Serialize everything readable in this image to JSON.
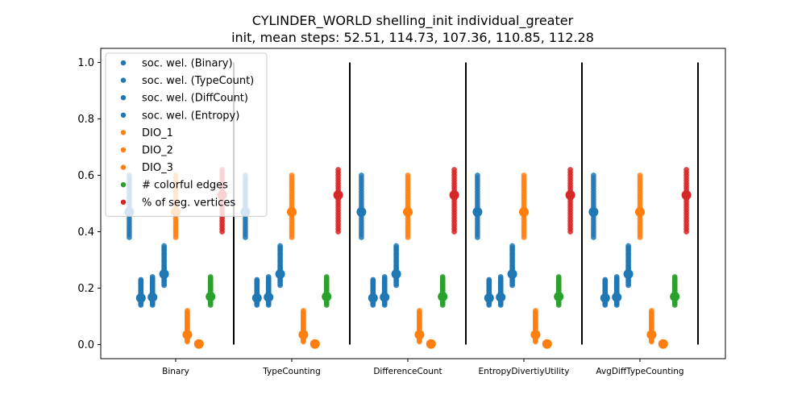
{
  "chart_data": {
    "type": "scatter",
    "title": "CYLINDER_WORLD shelling_init individual_greater",
    "subtitle": "init, mean steps: 52.51, 114.73, 107.36, 110.85, 112.28",
    "xlabel": "",
    "ylabel": "",
    "ylim": [
      -0.05,
      1.05
    ],
    "yticks": [
      "0.0",
      "0.2",
      "0.4",
      "0.6",
      "0.8",
      "1.0"
    ],
    "grid": false,
    "legend_position": "upper-left",
    "categories": [
      "Binary",
      "TypeCounting",
      "DifferenceCount",
      "EntropyDivertiyUtility",
      "AvgDiffTypeCounting"
    ],
    "separators_after_category": true,
    "series": [
      {
        "name": "soc. wel. (Binary)",
        "color": "#1f77b4",
        "offset": -0.4,
        "min": 0.38,
        "max": 0.6,
        "mean": 0.47
      },
      {
        "name": "soc. wel. (TypeCount)",
        "color": "#1f77b4",
        "offset": -0.3,
        "min": 0.14,
        "max": 0.23,
        "mean": 0.165
      },
      {
        "name": "soc. wel. (DiffCount)",
        "color": "#1f77b4",
        "offset": -0.2,
        "min": 0.14,
        "max": 0.24,
        "mean": 0.168
      },
      {
        "name": "soc. wel. (Entropy)",
        "color": "#1f77b4",
        "offset": -0.1,
        "min": 0.21,
        "max": 0.35,
        "mean": 0.25
      },
      {
        "name": "DIO_1",
        "color": "#ff7f0e",
        "offset": 0.0,
        "min": 0.38,
        "max": 0.6,
        "mean": 0.47
      },
      {
        "name": "DIO_2",
        "color": "#ff7f0e",
        "offset": 0.1,
        "min": 0.01,
        "max": 0.12,
        "mean": 0.035
      },
      {
        "name": "DIO_3",
        "color": "#ff7f0e",
        "offset": 0.2,
        "min": 0.0,
        "max": 0.0,
        "mean": 0.002
      },
      {
        "name": "# colorful edges",
        "color": "#2ca02c",
        "offset": 0.3,
        "min": 0.14,
        "max": 0.24,
        "mean": 0.17
      },
      {
        "name": "% of seg. vertices",
        "color": "#d62728",
        "offset": 0.4,
        "min": 0.4,
        "max": 0.62,
        "mean": 0.53
      }
    ]
  }
}
